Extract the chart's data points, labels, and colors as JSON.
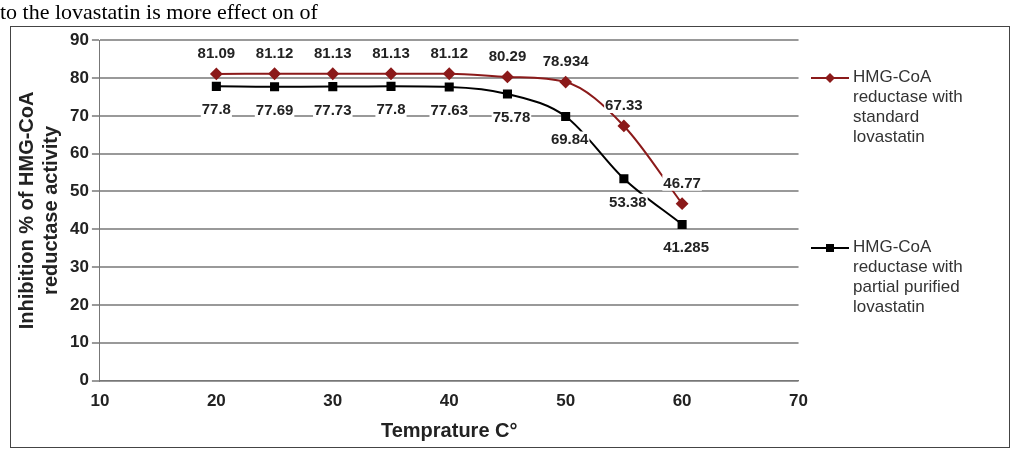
{
  "chart_data": {
    "type": "line",
    "xlabel": "Temprature C°",
    "ylabel": "Inhibition % of HMG-CoA reductase activity",
    "annotations": [
      "to the lovastatin is more effect on of"
    ],
    "x": [
      20,
      25,
      30,
      35,
      40,
      45,
      50,
      55,
      60
    ],
    "series": [
      {
        "name": "HMG-CoA reductase with standard lovastatin",
        "color": "#8b1a1a",
        "marker": "diamond",
        "values": [
          81.09,
          81.12,
          81.13,
          81.13,
          81.12,
          80.29,
          78.934,
          67.33,
          46.77
        ]
      },
      {
        "name": "HMG-CoA reductase with partial purified lovastatin",
        "color": "#000000",
        "marker": "square",
        "values": [
          77.8,
          77.69,
          77.73,
          77.8,
          77.63,
          75.78,
          69.84,
          53.38,
          41.285
        ]
      }
    ],
    "xlim": [
      10,
      70
    ],
    "xticks": [
      10,
      20,
      30,
      40,
      50,
      60,
      70
    ],
    "ylim": [
      0,
      90
    ],
    "yticks": [
      0,
      10,
      20,
      30,
      40,
      50,
      60,
      70,
      80,
      90
    ],
    "grid": "y",
    "legend": "right",
    "data_labels": true
  }
}
